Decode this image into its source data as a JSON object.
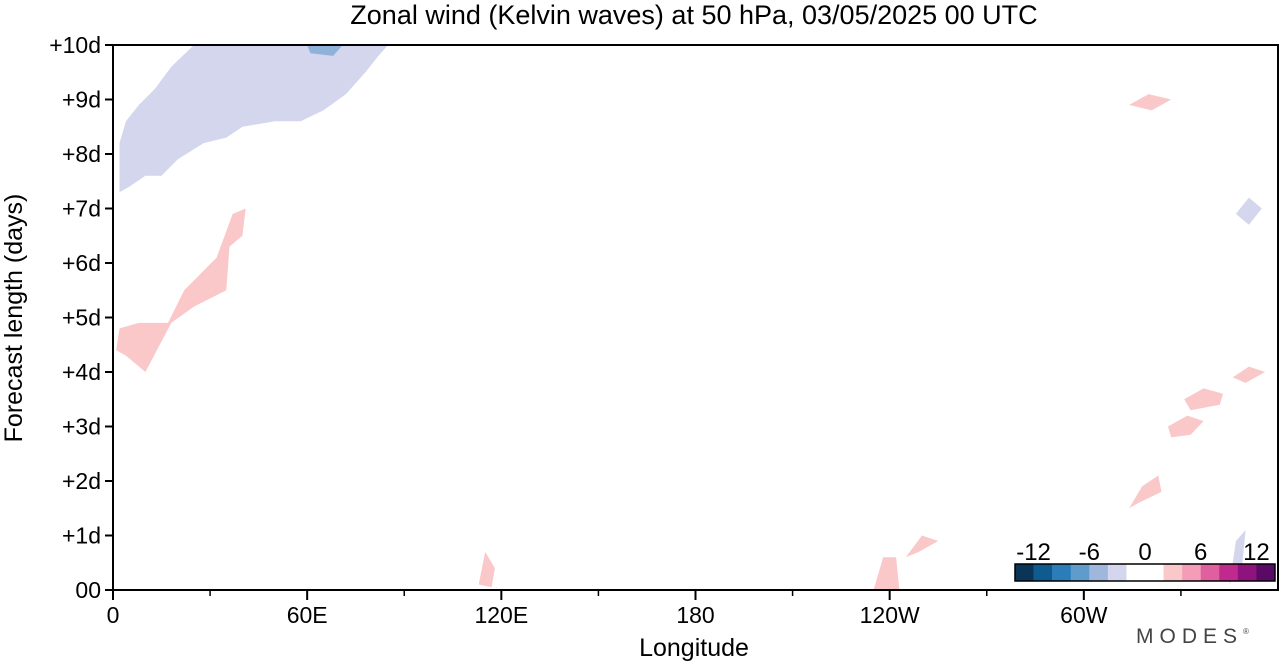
{
  "chart_data": {
    "type": "heatmap",
    "title": "Zonal wind (Kelvin waves) at 50 hPa,  03/05/2025  00 UTC",
    "xlabel": "Longitude",
    "ylabel": "Forecast length (days)",
    "x_range_degE": [
      0,
      360
    ],
    "y_range_days": [
      0,
      10
    ],
    "x_tick_labels": [
      {
        "lon": 0,
        "label": "0"
      },
      {
        "lon": 60,
        "label": "60E"
      },
      {
        "lon": 120,
        "label": "120E"
      },
      {
        "lon": 180,
        "label": "180"
      },
      {
        "lon": 240,
        "label": "120W"
      },
      {
        "lon": 300,
        "label": "60W"
      }
    ],
    "y_tick_labels": [
      {
        "day": 0,
        "label": "00"
      },
      {
        "day": 1,
        "label": "+1d"
      },
      {
        "day": 2,
        "label": "+2d"
      },
      {
        "day": 3,
        "label": "+3d"
      },
      {
        "day": 4,
        "label": "+4d"
      },
      {
        "day": 5,
        "label": "+5d"
      },
      {
        "day": 6,
        "label": "+6d"
      },
      {
        "day": 7,
        "label": "+7d"
      },
      {
        "day": 8,
        "label": "+8d"
      },
      {
        "day": 9,
        "label": "+9d"
      },
      {
        "day": 10,
        "label": "+10d"
      }
    ],
    "colorbar": {
      "tick_labels": [
        {
          "value": -12,
          "label": "-12"
        },
        {
          "value": -6,
          "label": "-6"
        },
        {
          "value": 0,
          "label": "0"
        },
        {
          "value": 6,
          "label": "6"
        },
        {
          "value": 12,
          "label": "12"
        }
      ],
      "colors": [
        "#0b3556",
        "#0f5a8e",
        "#2a7db8",
        "#5f9ccb",
        "#9fb7dc",
        "#d3d6ec",
        "#ffffff",
        "#ffffff",
        "#fac8c8",
        "#f59cb8",
        "#e0609f",
        "#c02a8c",
        "#8e137f",
        "#5a0a66"
      ]
    },
    "regions": [
      {
        "name": "easterly-anomaly-upper-left",
        "value": -3,
        "color": "#d3d6ec",
        "outline": [
          [
            2,
            7.3
          ],
          [
            5,
            7.4
          ],
          [
            10,
            7.6
          ],
          [
            15,
            7.6
          ],
          [
            20,
            7.9
          ],
          [
            28,
            8.2
          ],
          [
            35,
            8.3
          ],
          [
            40,
            8.5
          ],
          [
            50,
            8.6
          ],
          [
            58,
            8.6
          ],
          [
            65,
            8.8
          ],
          [
            72,
            9.1
          ],
          [
            78,
            9.5
          ],
          [
            82,
            9.8
          ],
          [
            85,
            10
          ],
          [
            25,
            10
          ],
          [
            18,
            9.6
          ],
          [
            13,
            9.2
          ],
          [
            8,
            8.9
          ],
          [
            4,
            8.6
          ],
          [
            2,
            8.2
          ]
        ]
      },
      {
        "name": "easterly-core-upper",
        "value": -6,
        "color": "#8fb2da",
        "outline": [
          [
            61,
            9.85
          ],
          [
            68,
            9.8
          ],
          [
            71,
            10
          ],
          [
            60,
            10
          ]
        ]
      },
      {
        "name": "westerly-anomaly-left-band",
        "value": 3,
        "color": "#fac8c8",
        "outline": [
          [
            1,
            4.4
          ],
          [
            4,
            4.3
          ],
          [
            10,
            4.0
          ],
          [
            18,
            4.9
          ],
          [
            25,
            5.2
          ],
          [
            35,
            5.5
          ],
          [
            36,
            6.3
          ],
          [
            40,
            6.5
          ],
          [
            41,
            7.0
          ],
          [
            37,
            6.9
          ],
          [
            32,
            6.1
          ],
          [
            22,
            5.5
          ],
          [
            17,
            4.9
          ],
          [
            8,
            4.9
          ],
          [
            2,
            4.8
          ]
        ]
      },
      {
        "name": "westerly-blob-114E",
        "value": 3,
        "color": "#fac8c8",
        "outline": [
          [
            113,
            0.1
          ],
          [
            115,
            0.7
          ],
          [
            118,
            0.4
          ],
          [
            117,
            0.05
          ]
        ]
      },
      {
        "name": "westerly-blob-near-120W",
        "value": 3,
        "color": "#fac8c8",
        "outline": [
          [
            235,
            0
          ],
          [
            238,
            0.6
          ],
          [
            242,
            0.6
          ],
          [
            243,
            0
          ]
        ]
      },
      {
        "name": "westerly-blob-95W",
        "value": 3,
        "color": "#fac8c8",
        "outline": [
          [
            245,
            0.6
          ],
          [
            250,
            1.0
          ],
          [
            255,
            0.9
          ],
          [
            249,
            0.7
          ]
        ]
      },
      {
        "name": "westerly-blob-45W-2d",
        "value": 3,
        "color": "#fac8c8",
        "outline": [
          [
            314,
            1.5
          ],
          [
            318,
            1.9
          ],
          [
            323,
            2.1
          ],
          [
            324,
            1.8
          ],
          [
            317,
            1.6
          ]
        ]
      },
      {
        "name": "westerly-blob-3d",
        "value": 3,
        "color": "#fac8c8",
        "outline": [
          [
            326,
            3.0
          ],
          [
            332,
            3.2
          ],
          [
            337,
            3.1
          ],
          [
            333,
            2.85
          ],
          [
            327,
            2.8
          ]
        ]
      },
      {
        "name": "westerly-blob-3.5d",
        "value": 3,
        "color": "#fac8c8",
        "outline": [
          [
            331,
            3.5
          ],
          [
            337,
            3.7
          ],
          [
            343,
            3.6
          ],
          [
            342,
            3.4
          ],
          [
            333,
            3.3
          ]
        ]
      },
      {
        "name": "westerly-blob-4d",
        "value": 3,
        "color": "#fac8c8",
        "outline": [
          [
            346,
            3.9
          ],
          [
            351,
            4.1
          ],
          [
            356,
            4.0
          ],
          [
            350,
            3.8
          ]
        ]
      },
      {
        "name": "westerly-blob-9d",
        "value": 3,
        "color": "#fac8c8",
        "outline": [
          [
            314,
            8.9
          ],
          [
            320,
            9.1
          ],
          [
            327,
            9.0
          ],
          [
            321,
            8.8
          ]
        ]
      },
      {
        "name": "easterly-blob-7d",
        "value": -3,
        "color": "#d3d6ec",
        "outline": [
          [
            347,
            6.9
          ],
          [
            351,
            7.2
          ],
          [
            355,
            7.0
          ],
          [
            351,
            6.7
          ]
        ]
      },
      {
        "name": "easterly-blob-1d",
        "value": -3,
        "color": "#d3d6ec",
        "outline": [
          [
            345,
            0.1
          ],
          [
            349,
            0.5
          ],
          [
            350,
            1.1
          ],
          [
            347,
            0.9
          ]
        ]
      }
    ]
  },
  "branding": {
    "name": "MODES",
    "mark": "®"
  }
}
